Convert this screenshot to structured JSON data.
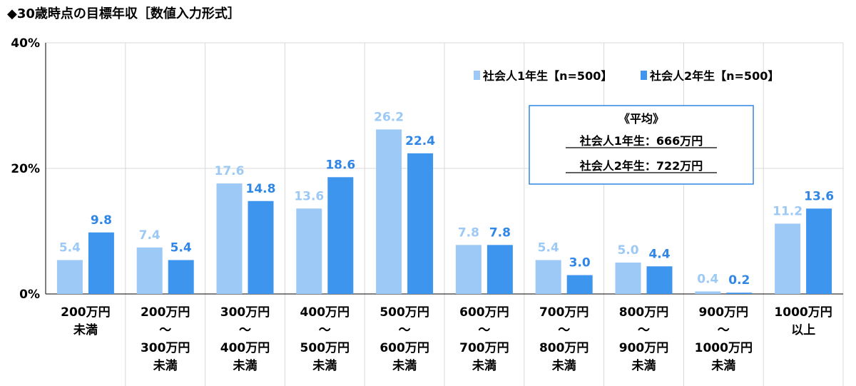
{
  "chart_data": {
    "type": "bar",
    "title": "◆30歳時点の目標年収［数値入力形式］",
    "yticks": [
      "0%",
      "20%",
      "40%"
    ],
    "ylim": [
      0,
      40
    ],
    "grid": true,
    "legend_position": "top-right",
    "categories": [
      [
        "200万円",
        "未満"
      ],
      [
        "200万円",
        "～",
        "300万円",
        "未満"
      ],
      [
        "300万円",
        "～",
        "400万円",
        "未満"
      ],
      [
        "400万円",
        "～",
        "500万円",
        "未満"
      ],
      [
        "500万円",
        "～",
        "600万円",
        "未満"
      ],
      [
        "600万円",
        "～",
        "700万円",
        "未満"
      ],
      [
        "700万円",
        "～",
        "800万円",
        "未満"
      ],
      [
        "800万円",
        "～",
        "900万円",
        "未満"
      ],
      [
        "900万円",
        "～",
        "1000万円",
        "未満"
      ],
      [
        "1000万円",
        "以上"
      ]
    ],
    "series": [
      {
        "name": "社会人1年生【n=500】",
        "color": "#9cc9f5",
        "label_color": "#9cc9f5",
        "values": [
          5.4,
          7.4,
          17.6,
          13.6,
          26.2,
          7.8,
          5.4,
          5.0,
          0.4,
          11.2
        ],
        "labels": [
          "5.4",
          "7.4",
          "17.6",
          "13.6",
          "26.2",
          "7.8",
          "5.4",
          "5.0",
          "0.4",
          "11.2"
        ]
      },
      {
        "name": "社会人2年生【n=500】",
        "color": "#3d95ee",
        "label_color": "#2f86e6",
        "values": [
          9.8,
          5.4,
          14.8,
          18.6,
          22.4,
          7.8,
          3.0,
          4.4,
          0.2,
          13.6
        ],
        "labels": [
          "9.8",
          "5.4",
          "14.8",
          "18.6",
          "22.4",
          "7.8",
          "3.0",
          "4.4",
          "0.2",
          "13.6"
        ]
      }
    ],
    "annotation": {
      "lines": [
        "《平均》",
        "社会人1年生：666万円",
        "社会人2年生：722万円"
      ],
      "border_color": "#2f86e6"
    }
  }
}
